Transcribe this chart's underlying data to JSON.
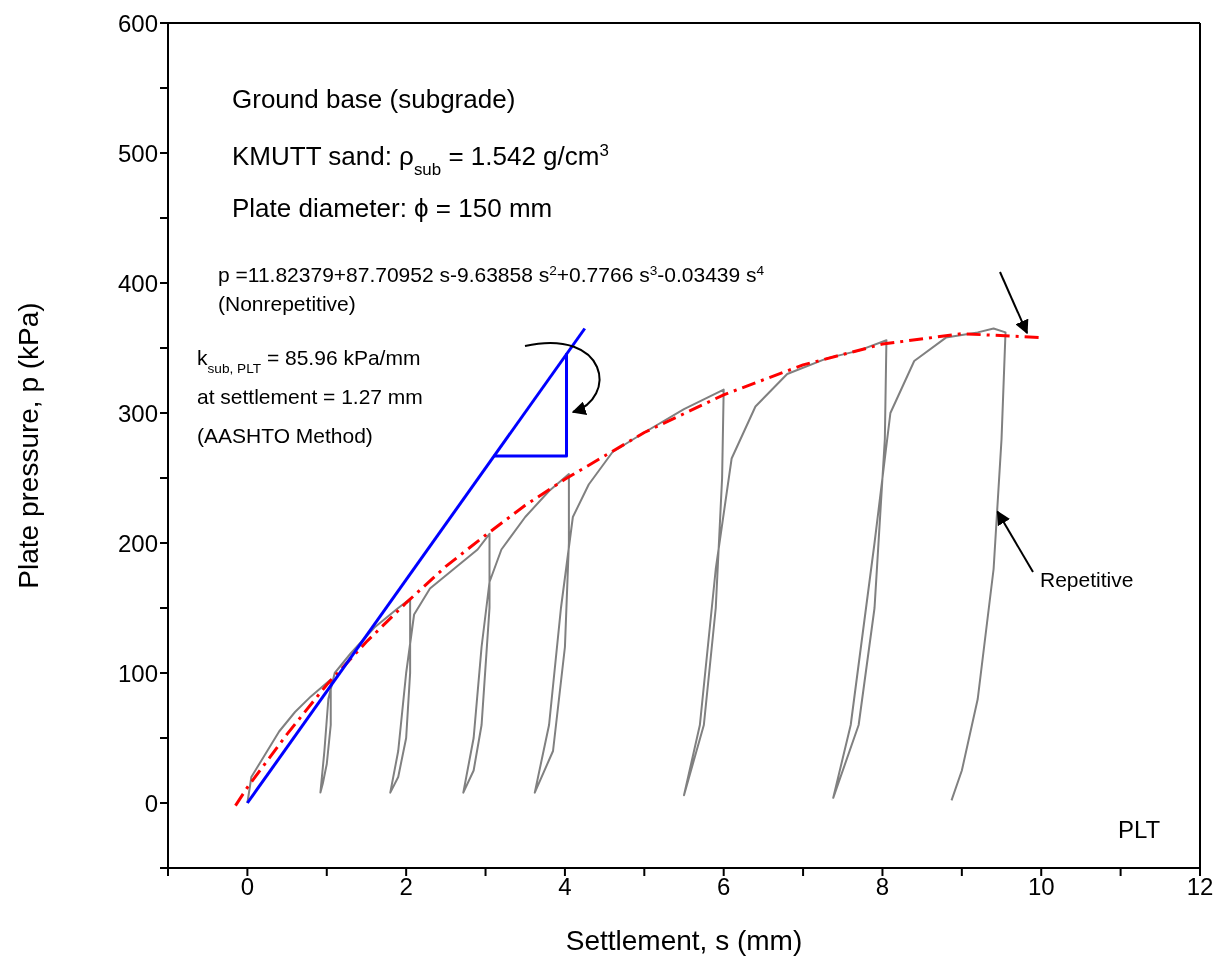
{
  "chart_data": {
    "type": "line",
    "xlabel": "Settlement, s (mm)",
    "ylabel": "Plate pressure, p (kPa)",
    "xlim": [
      -1,
      12
    ],
    "ylim": [
      -50,
      600
    ],
    "xticks": [
      {
        "value": -1,
        "label": null
      },
      0,
      {
        "value": 1,
        "label": null
      },
      2,
      {
        "value": 3,
        "label": null
      },
      4,
      {
        "value": 5,
        "label": null
      },
      6,
      {
        "value": 7,
        "label": null
      },
      8,
      {
        "value": 9,
        "label": null
      },
      10,
      {
        "value": 11,
        "label": null
      },
      12
    ],
    "yticks": [
      {
        "value": -50,
        "label": null
      },
      0,
      {
        "value": 50,
        "label": null
      },
      100,
      {
        "value": 150,
        "label": null
      },
      200,
      {
        "value": 250,
        "label": null
      },
      300,
      {
        "value": 350,
        "label": null
      },
      400,
      {
        "value": 450,
        "label": null
      },
      500,
      {
        "value": 550,
        "label": null
      },
      600
    ],
    "marker": "none",
    "series": [
      {
        "color": "#808080",
        "line_style": "solid",
        "x": [
          0,
          0.05,
          0.2,
          0.4,
          0.6,
          0.8,
          1.05,
          1.05,
          1.0,
          0.95,
          0.92,
          0.97,
          1.02,
          1.1,
          1.3,
          1.6,
          1.9,
          2.05,
          2.05,
          2.0,
          1.9,
          1.8,
          1.9,
          2.0,
          2.1,
          2.3,
          2.6,
          2.9,
          3.05,
          3.05,
          2.95,
          2.85,
          2.72,
          2.85,
          2.95,
          3.05,
          3.2,
          3.5,
          3.8,
          4.05,
          4.05,
          4.0,
          3.85,
          3.62,
          3.8,
          3.95,
          4.1,
          4.3,
          4.6,
          5.0,
          5.5,
          6.0,
          5.98,
          5.9,
          5.75,
          5.5,
          5.7,
          5.9,
          6.1,
          6.4,
          6.8,
          7.3,
          7.7,
          8.05,
          8.03,
          7.9,
          7.7,
          7.38,
          7.6,
          7.9,
          8.1,
          8.4,
          8.8,
          9.2,
          9.4,
          9.55,
          9.5,
          9.4,
          9.2,
          9.0,
          8.87
        ],
        "values": [
          0,
          20,
          35,
          55,
          70,
          82,
          95,
          60,
          30,
          15,
          8,
          40,
          80,
          100,
          115,
          135,
          150,
          157,
          100,
          50,
          20,
          8,
          40,
          100,
          145,
          165,
          180,
          195,
          207,
          150,
          60,
          25,
          8,
          50,
          120,
          170,
          195,
          220,
          240,
          253,
          200,
          120,
          40,
          8,
          60,
          150,
          220,
          245,
          270,
          285,
          303,
          318,
          250,
          150,
          60,
          6,
          60,
          180,
          265,
          305,
          330,
          342,
          348,
          356,
          280,
          150,
          60,
          4,
          60,
          200,
          300,
          340,
          358,
          362,
          365,
          362,
          280,
          180,
          80,
          25,
          2
        ]
      },
      {
        "color": "#ff0000",
        "line_style": "dashed",
        "x": [
          -0.15,
          0,
          0.5,
          1,
          1.5,
          2,
          2.5,
          3,
          3.5,
          4,
          5,
          6,
          7,
          8,
          9,
          10
        ],
        "values": [
          -2,
          12,
          53,
          91,
          124,
          154,
          182,
          206,
          229,
          249,
          285,
          314,
          337,
          353,
          361,
          358
        ]
      },
      {
        "color": "#0000ff",
        "line_style": "solid",
        "x": [
          0,
          4.25
        ],
        "values": [
          0,
          365
        ]
      },
      {
        "color": "#0000ff",
        "line_style": "solid",
        "x": [
          3.1,
          4.02,
          4.02
        ],
        "values": [
          267,
          267,
          346
        ]
      }
    ],
    "annotations": [
      "Ground base (subgrade)",
      "KMUTT sand: ρ$_{sub}$ = 1.542 g/cm$^{3}$",
      "Plate diameter: ϕ = 150 mm",
      "p =11.82379+87.70952 s-9.63858 s$^{2}$+0.7766 s$^{3}$-0.03439 s$^{4}$",
      "(Nonrepetitive)",
      "k$_{sub, PLT}$ = 85.96 kPa/mm",
      "at settlement = 1.27 mm",
      "(AASHTO Method)",
      {
        "text": "Repetitive",
        "x": 9.45,
        "y": 224
      },
      "PLT"
    ]
  }
}
